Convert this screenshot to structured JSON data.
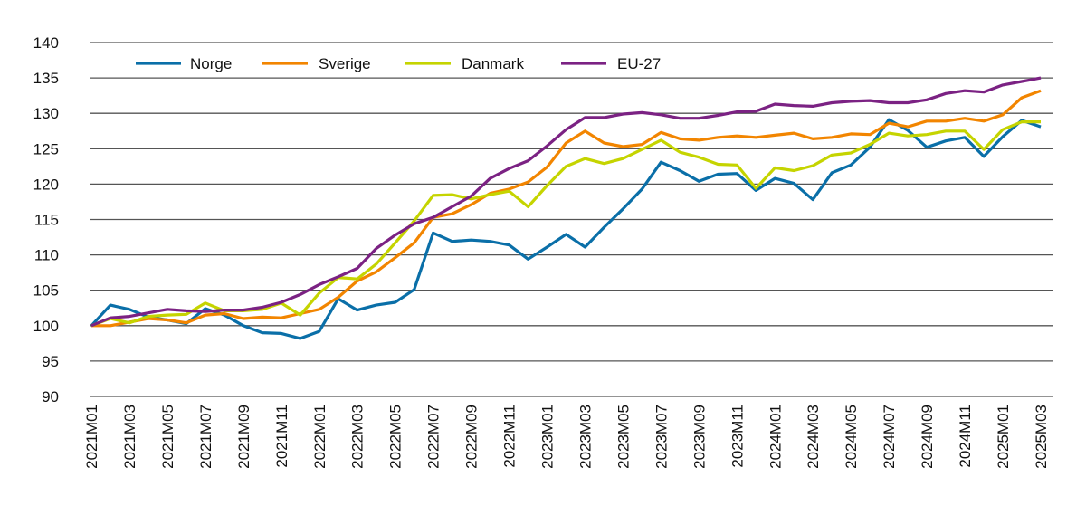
{
  "chart_data": {
    "type": "line",
    "title": "",
    "xlabel": "",
    "ylabel": "",
    "ylim": [
      90,
      140
    ],
    "yticks": [
      90,
      95,
      100,
      105,
      110,
      115,
      120,
      125,
      130,
      135,
      140
    ],
    "grid": true,
    "legend_placement": "top-left",
    "x": [
      "2021M01",
      "2021M02",
      "2021M03",
      "2021M04",
      "2021M05",
      "2021M06",
      "2021M07",
      "2021M08",
      "2021M09",
      "2021M10",
      "2021M11",
      "2021M12",
      "2022M01",
      "2022M02",
      "2022M03",
      "2022M04",
      "2022M05",
      "2022M06",
      "2022M07",
      "2022M08",
      "2022M09",
      "2022M10",
      "2022M11",
      "2022M12",
      "2023M01",
      "2023M02",
      "2023M03",
      "2023M04",
      "2023M05",
      "2023M06",
      "2023M07",
      "2023M08",
      "2023M09",
      "2023M10",
      "2023M11",
      "2023M12",
      "2024M01",
      "2024M02",
      "2024M03",
      "2024M04",
      "2024M05",
      "2024M06",
      "2024M07",
      "2024M08",
      "2024M09",
      "2024M10",
      "2024M11",
      "2024M12",
      "2025M01",
      "2025M02",
      "2025M03"
    ],
    "xtick_labels": [
      "2021M01",
      "2021M03",
      "2021M05",
      "2021M07",
      "2021M09",
      "2021M11",
      "2022M01",
      "2022M03",
      "2022M05",
      "2022M07",
      "2022M09",
      "2022M11",
      "2023M01",
      "2023M03",
      "2023M05",
      "2023M07",
      "2023M09",
      "2023M11",
      "2024M01",
      "2024M03",
      "2024M05",
      "2024M07",
      "2024M09",
      "2024M11",
      "2025M01",
      "2025M03"
    ],
    "series": [
      {
        "name": "Norge",
        "color": "#0a6fa8",
        "values": [
          100,
          102.9,
          102.3,
          101.2,
          100.8,
          100.3,
          102.4,
          101.5,
          100,
          99,
          98.9,
          98.2,
          99.2,
          103.8,
          102.2,
          102.9,
          103.3,
          105.1,
          113.1,
          111.9,
          112.1,
          111.9,
          111.4,
          109.4,
          111.1,
          112.9,
          111.1,
          113.9,
          116.5,
          119.3,
          123.1,
          121.9,
          120.4,
          121.4,
          121.5,
          119.1,
          120.8,
          120.1,
          117.8,
          121.6,
          122.7,
          125.2,
          129.1,
          127.6,
          125.2,
          126.1,
          126.6,
          123.9,
          126.7,
          129.0,
          128.1
        ]
      },
      {
        "name": "Sverige",
        "color": "#f28500",
        "values": [
          100,
          100,
          100.5,
          101,
          100.8,
          100.4,
          101.5,
          101.7,
          101,
          101.2,
          101.1,
          101.7,
          102.3,
          104,
          106.3,
          107.6,
          109.6,
          111.7,
          115.3,
          115.8,
          117.1,
          118.7,
          119.3,
          120.3,
          122.4,
          125.8,
          127.5,
          125.8,
          125.3,
          125.6,
          127.3,
          126.4,
          126.2,
          126.6,
          126.8,
          126.6,
          126.9,
          127.2,
          126.4,
          126.6,
          127.1,
          127,
          128.6,
          128.1,
          128.9,
          128.9,
          129.3,
          128.9,
          129.8,
          132.2,
          133.2
        ]
      },
      {
        "name": "Danmark",
        "color": "#c5d400",
        "values": [
          100,
          101,
          100.4,
          101.3,
          101.5,
          101.6,
          103.2,
          102.1,
          102.1,
          102.3,
          103.2,
          101.5,
          104.6,
          106.8,
          106.6,
          108.7,
          111.7,
          114.8,
          118.4,
          118.5,
          117.9,
          118.5,
          119,
          116.8,
          119.8,
          122.5,
          123.6,
          122.9,
          123.6,
          124.9,
          126.2,
          124.5,
          123.8,
          122.8,
          122.7,
          119.4,
          122.3,
          121.9,
          122.6,
          124.1,
          124.4,
          125.6,
          127.2,
          126.8,
          127,
          127.5,
          127.5,
          124.9,
          127.7,
          128.8,
          128.8
        ]
      },
      {
        "name": "EU-27",
        "color": "#7b2283",
        "values": [
          100,
          101.1,
          101.3,
          101.8,
          102.3,
          102.1,
          102,
          102.2,
          102.2,
          102.6,
          103.3,
          104.4,
          105.8,
          106.9,
          108.1,
          110.9,
          112.8,
          114.4,
          115.3,
          116.8,
          118.3,
          120.8,
          122.2,
          123.3,
          125.4,
          127.7,
          129.4,
          129.4,
          129.9,
          130.1,
          129.8,
          129.3,
          129.3,
          129.7,
          130.2,
          130.3,
          131.3,
          131.1,
          131,
          131.5,
          131.7,
          131.8,
          131.5,
          131.5,
          131.9,
          132.8,
          133.2,
          133,
          134,
          134.5,
          135
        ]
      }
    ]
  }
}
